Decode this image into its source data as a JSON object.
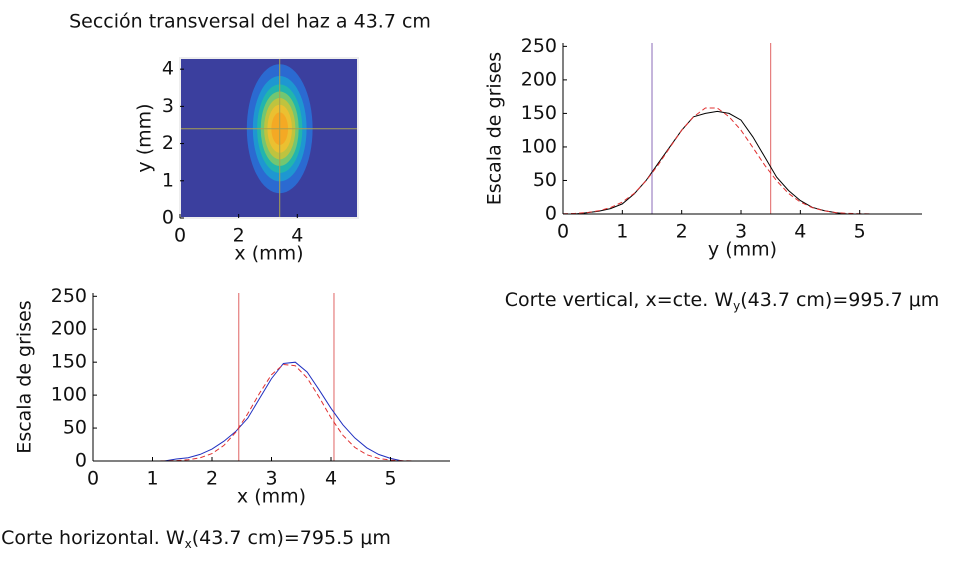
{
  "chart_data": [
    {
      "type": "heatmap",
      "title": "Sección transversal del haz a 43.7 cm",
      "xlabel": "x (mm)",
      "ylabel": "y (mm)",
      "xlim": [
        0,
        6.07
      ],
      "ylim": [
        0,
        4.3
      ],
      "xticks": [
        0,
        2,
        4
      ],
      "yticks": [
        0,
        1,
        2,
        3,
        4
      ],
      "background": "#3b3f9e",
      "colors": [
        "#3b3f9e",
        "#2a6fd6",
        "#1d9cd0",
        "#22b8a8",
        "#7cc86a",
        "#c8c23a",
        "#f0c030",
        "#f5a623"
      ],
      "spot": {
        "x": 3.4,
        "y": 2.4,
        "sigma_x": 0.55,
        "sigma_y": 0.85
      },
      "crosshair": {
        "x": 3.4,
        "y": 2.4,
        "color": "#a8a050"
      }
    },
    {
      "type": "line",
      "xlabel": "y (mm)",
      "ylabel": "Escala de grises",
      "caption": "Corte vertical, x=cte. W",
      "caption_subscript": "y",
      "caption_suffix": "(43.7 cm)=995.7 μm",
      "xlim": [
        0,
        6.05
      ],
      "ylim": [
        0,
        255
      ],
      "xticks": [
        0,
        1,
        2,
        3,
        4,
        5
      ],
      "yticks": [
        0,
        50,
        100,
        150,
        200,
        250
      ],
      "vlines": [
        {
          "x": 1.5,
          "color": "#8a6ab8"
        },
        {
          "x": 3.5,
          "color": "#e06464"
        }
      ],
      "x": [
        0,
        0.2,
        0.4,
        0.6,
        0.8,
        1.0,
        1.2,
        1.4,
        1.6,
        1.8,
        2.0,
        2.2,
        2.4,
        2.6,
        2.8,
        3.0,
        3.2,
        3.4,
        3.6,
        3.8,
        4.0,
        4.2,
        4.4,
        4.6,
        4.8,
        5.0,
        5.2
      ],
      "series": [
        {
          "color": "#000000",
          "dash": false,
          "values": [
            0,
            0,
            2,
            4,
            8,
            15,
            30,
            50,
            75,
            100,
            125,
            145,
            150,
            153,
            150,
            140,
            115,
            85,
            55,
            35,
            20,
            10,
            5,
            2,
            0,
            0,
            0
          ]
        },
        {
          "color": "#e03030",
          "dash": true,
          "values": [
            0.4,
            0.9,
            2.1,
            4.7,
            9.5,
            17.7,
            30.7,
            49.6,
            72.6,
            99,
            125,
            145,
            158,
            158,
            145,
            125,
            99,
            72.6,
            49.6,
            30.7,
            17.7,
            9.5,
            4.7,
            2.1,
            0.9,
            0.4,
            0.1
          ]
        }
      ]
    },
    {
      "type": "line",
      "xlabel": "x (mm)",
      "ylabel": "Escala de grises",
      "caption": "Corte horizontal. W",
      "caption_subscript": "x",
      "caption_suffix": "(43.7 cm)=795.5 μm",
      "xlim": [
        0,
        6
      ],
      "ylim": [
        0,
        255
      ],
      "xticks": [
        0,
        1,
        2,
        3,
        4,
        5
      ],
      "yticks": [
        0,
        50,
        100,
        150,
        200,
        250
      ],
      "vlines": [
        {
          "x": 2.45,
          "color": "#e06464"
        },
        {
          "x": 4.05,
          "color": "#e06464"
        }
      ],
      "x": [
        1.0,
        1.2,
        1.4,
        1.6,
        1.8,
        2.0,
        2.2,
        2.4,
        2.6,
        2.8,
        3.0,
        3.2,
        3.4,
        3.6,
        3.8,
        4.0,
        4.2,
        4.4,
        4.6,
        4.8,
        5.0,
        5.2,
        5.4
      ],
      "series": [
        {
          "color": "#2030c0",
          "dash": false,
          "values": [
            0,
            0,
            3,
            5,
            10,
            18,
            30,
            45,
            65,
            95,
            125,
            148,
            150,
            135,
            108,
            80,
            55,
            35,
            20,
            10,
            4,
            0,
            0
          ]
        },
        {
          "color": "#e03030",
          "dash": true,
          "values": [
            0,
            0.1,
            0.6,
            1.8,
            4.8,
            11.3,
            23.7,
            43.7,
            71.6,
            103,
            131,
            146.5,
            144.7,
            126,
            97,
            65.6,
            39,
            20.6,
            9.5,
            3.9,
            1.4,
            0.5,
            0.1
          ]
        }
      ]
    }
  ]
}
